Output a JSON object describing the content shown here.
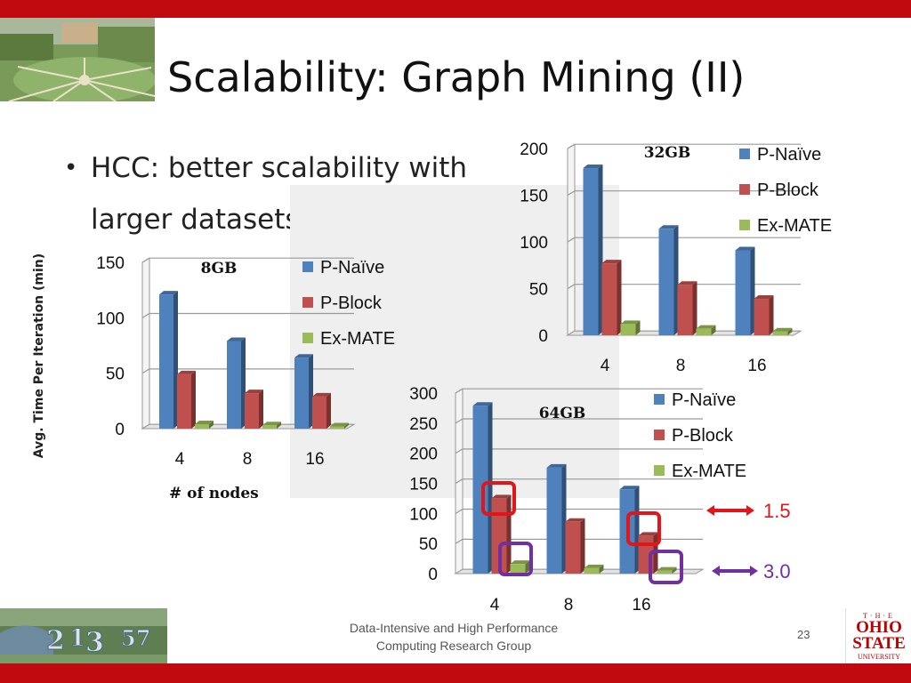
{
  "slide": {
    "title": "Scalability: Graph Mining (II)",
    "bullet": "HCC: better scalability with larger datasets",
    "footer_line1": "Data-Intensive and High Performance",
    "footer_line2": "Computing Research Group",
    "page_number": "23",
    "logo_line1": "T·H·E",
    "logo_line2a": "OHIO",
    "logo_line2b": "STATE",
    "logo_line3": "UNIVERSITY"
  },
  "axes": {
    "ylabel": "Avg. Time Per Iteration (min)",
    "xlabel": "# of nodes"
  },
  "annotations": {
    "pblock_ratio": "1.5",
    "exmate_ratio": "3.0",
    "red_color": "#e0161b",
    "purple_color": "#7030a0"
  },
  "colors": {
    "pnaive": "#4f81bd",
    "pblock": "#c0504d",
    "exmate": "#9bbb59"
  },
  "chart_data": [
    {
      "type": "bar",
      "title": "8GB",
      "categories": [
        "4",
        "8",
        "16"
      ],
      "series": [
        {
          "name": "P-Naïve",
          "values": [
            121,
            79,
            64
          ]
        },
        {
          "name": "P-Block",
          "values": [
            49,
            32,
            29
          ]
        },
        {
          "name": "Ex-MATE",
          "values": [
            4,
            3,
            2
          ]
        }
      ],
      "yticks": [
        "0",
        "50",
        "100",
        "150"
      ],
      "ylim": [
        0,
        150
      ],
      "grid": true,
      "legend": "right"
    },
    {
      "type": "bar",
      "title": "32GB",
      "categories": [
        "4",
        "8",
        "16"
      ],
      "series": [
        {
          "name": "P-Naïve",
          "values": [
            179,
            114,
            91
          ]
        },
        {
          "name": "P-Block",
          "values": [
            77,
            54,
            39
          ]
        },
        {
          "name": "Ex-MATE",
          "values": [
            12,
            7,
            4
          ]
        }
      ],
      "yticks": [
        "0",
        "50",
        "100",
        "150",
        "200"
      ],
      "ylim": [
        0,
        200
      ],
      "grid": true,
      "legend": "right"
    },
    {
      "type": "bar",
      "title": "64GB",
      "categories": [
        "4",
        "8",
        "16"
      ],
      "series": [
        {
          "name": "P-Naïve",
          "values": [
            279,
            176,
            140
          ]
        },
        {
          "name": "P-Block",
          "values": [
            125,
            86,
            63
          ]
        },
        {
          "name": "Ex-MATE",
          "values": [
            16,
            9,
            5
          ]
        }
      ],
      "yticks": [
        "0",
        "50",
        "100",
        "150",
        "200",
        "250",
        "300"
      ],
      "ylim": [
        0,
        300
      ],
      "grid": true,
      "legend": "right"
    }
  ]
}
